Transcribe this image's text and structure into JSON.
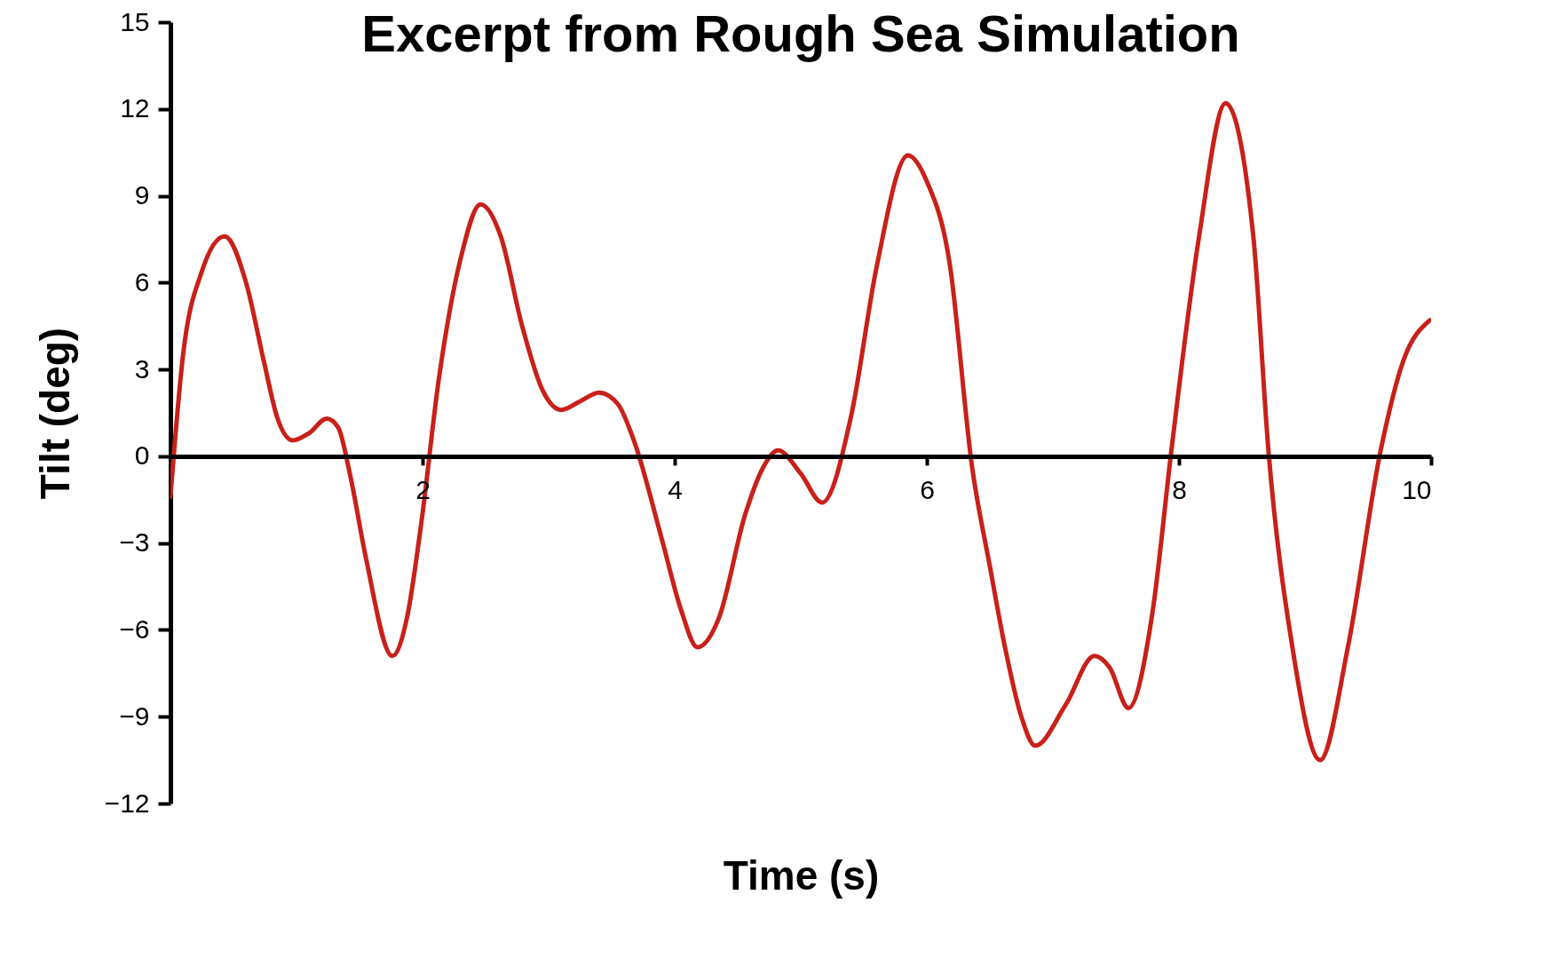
{
  "chart_data": {
    "type": "line",
    "title": "Excerpt from Rough Sea Simulation",
    "xlabel": "Time (s)",
    "ylabel": "Tilt (deg)",
    "xlim": [
      0,
      10
    ],
    "xticks": [
      2,
      4,
      6,
      8,
      10
    ],
    "ylim": [
      -12,
      15
    ],
    "yticks": [
      -12,
      -9,
      -6,
      -3,
      0,
      3,
      6,
      9,
      12,
      15
    ],
    "grid": false,
    "marker": "none",
    "line_style": "solid",
    "series": [
      {
        "color": "#c8201a",
        "x": [
          0,
          0.1,
          0.25,
          0.43,
          0.6,
          0.74,
          0.85,
          0.97,
          1.1,
          1.24,
          1.33,
          1.43,
          1.55,
          1.76,
          1.88,
          1.99,
          2.13,
          2.3,
          2.46,
          2.62,
          2.79,
          2.95,
          3.1,
          3.25,
          3.4,
          3.55,
          3.68,
          3.9,
          4.05,
          4.18,
          4.35,
          4.56,
          4.7,
          4.82,
          5.0,
          5.17,
          5.4,
          5.6,
          5.85,
          6.0,
          6.18,
          6.36,
          6.5,
          6.62,
          6.75,
          6.86,
          7.1,
          7.33,
          7.45,
          7.6,
          7.79,
          7.94,
          8.16,
          8.37,
          8.59,
          8.71,
          8.9,
          9.12,
          9.34,
          9.6,
          9.78,
          9.99
        ],
        "values": [
          -1.4,
          3.5,
          6.4,
          7.6,
          6.0,
          3.3,
          1.3,
          0.55,
          0.8,
          1.3,
          1.0,
          -0.75,
          -3.5,
          -6.9,
          -5.5,
          -2.3,
          2.7,
          6.8,
          8.7,
          7.6,
          4.5,
          2.3,
          1.6,
          1.9,
          2.2,
          1.8,
          0.5,
          -2.9,
          -5.3,
          -6.6,
          -5.6,
          -2.0,
          -0.4,
          0.2,
          -0.6,
          -1.6,
          1.4,
          6.5,
          10.4,
          9.5,
          6.7,
          -0.4,
          -3.8,
          -6.6,
          -9.0,
          -10.0,
          -8.6,
          -6.9,
          -7.3,
          -8.7,
          -5.4,
          0.2,
          7.6,
          12.2,
          7.6,
          0.2,
          -6.6,
          -10.5,
          -6.6,
          0.2,
          3.3,
          4.7
        ]
      }
    ]
  }
}
